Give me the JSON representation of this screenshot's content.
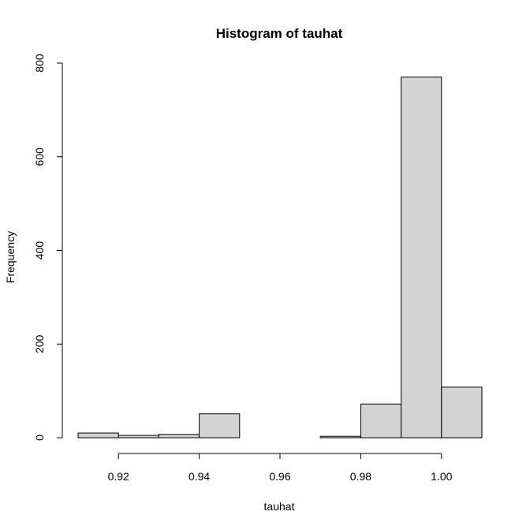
{
  "chart_data": {
    "type": "bar",
    "title": "Histogram of tauhat",
    "xlabel": "tauhat",
    "ylabel": "Frequency",
    "bins": [
      {
        "x0": 0.91,
        "x1": 0.92,
        "value": 10
      },
      {
        "x0": 0.92,
        "x1": 0.93,
        "value": 5
      },
      {
        "x0": 0.93,
        "x1": 0.94,
        "value": 7
      },
      {
        "x0": 0.94,
        "x1": 0.95,
        "value": 51
      },
      {
        "x0": 0.95,
        "x1": 0.96,
        "value": 0
      },
      {
        "x0": 0.96,
        "x1": 0.97,
        "value": 0
      },
      {
        "x0": 0.97,
        "x1": 0.98,
        "value": 3
      },
      {
        "x0": 0.98,
        "x1": 0.99,
        "value": 72
      },
      {
        "x0": 0.99,
        "x1": 1.0,
        "value": 770
      },
      {
        "x0": 1.0,
        "x1": 1.01,
        "value": 108
      }
    ],
    "xlim": [
      0.91,
      1.01
    ],
    "ylim": [
      0,
      800
    ],
    "x_ticks": [
      "0.92",
      "0.94",
      "0.96",
      "0.98",
      "1.00"
    ],
    "y_ticks": [
      "0",
      "200",
      "400",
      "600",
      "800"
    ],
    "grid": false,
    "bar_color": "#d3d3d3",
    "edge_color": "#000000"
  }
}
